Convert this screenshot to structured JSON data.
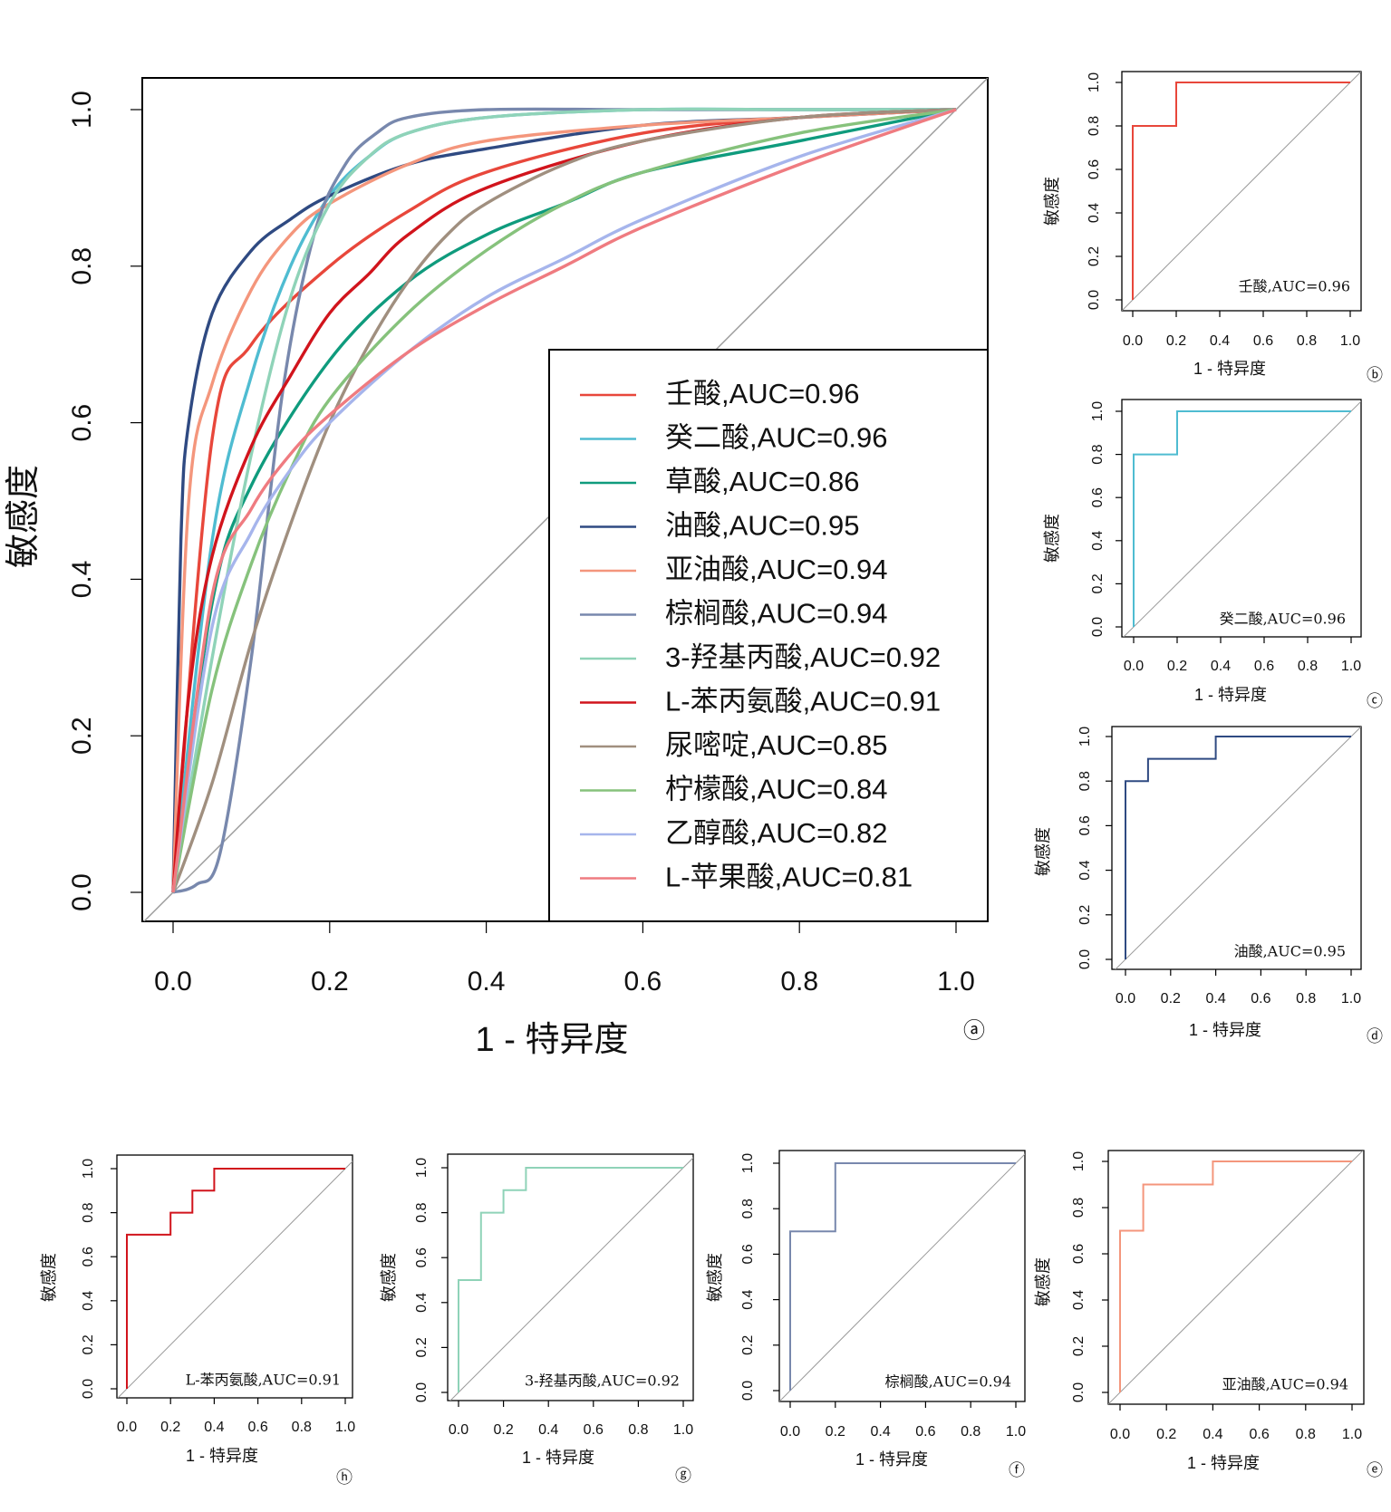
{
  "chart_data": [
    {
      "type": "line",
      "panel_tag": "ⓐ",
      "title": "",
      "xlabel": "1 - 特异度",
      "ylabel": "敏感度",
      "xlim": [
        0,
        1
      ],
      "ylim": [
        0,
        1
      ],
      "x_ticks": [
        "0.0",
        "0.2",
        "0.4",
        "0.6",
        "0.8",
        "1.0"
      ],
      "y_ticks": [
        "0.0",
        "0.2",
        "0.4",
        "0.6",
        "0.8",
        "1.0"
      ],
      "legend_position": "bottom-right",
      "reference_line": "diagonal",
      "series": [
        {
          "name": "壬酸,AUC=0.96",
          "color": "#e8473b",
          "x": [
            0,
            0.05,
            0.1,
            0.2,
            0.3,
            0.4,
            0.6,
            0.8,
            1
          ],
          "y": [
            0,
            0.58,
            0.7,
            0.8,
            0.87,
            0.92,
            0.97,
            0.99,
            1
          ]
        },
        {
          "name": "癸二酸,AUC=0.96",
          "color": "#4fbcd1",
          "x": [
            0,
            0.05,
            0.1,
            0.15,
            0.2,
            0.25,
            0.3,
            0.4,
            0.6,
            0.8,
            1
          ],
          "y": [
            0,
            0.45,
            0.66,
            0.8,
            0.89,
            0.94,
            0.97,
            0.99,
            1,
            1,
            1
          ]
        },
        {
          "name": "草酸,AUC=0.86",
          "color": "#0f9b7d",
          "x": [
            0,
            0.05,
            0.1,
            0.2,
            0.3,
            0.4,
            0.5,
            0.6,
            0.8,
            1
          ],
          "y": [
            0,
            0.37,
            0.52,
            0.68,
            0.78,
            0.84,
            0.88,
            0.92,
            0.96,
            1
          ]
        },
        {
          "name": "油酸,AUC=0.95",
          "color": "#2f4a82",
          "x": [
            0,
            0.01,
            0.02,
            0.05,
            0.1,
            0.15,
            0.2,
            0.3,
            0.4,
            0.6,
            0.8,
            1
          ],
          "y": [
            0,
            0.45,
            0.6,
            0.74,
            0.82,
            0.86,
            0.89,
            0.93,
            0.95,
            0.98,
            0.99,
            1
          ]
        },
        {
          "name": "亚油酸,AUC=0.94",
          "color": "#f4967c",
          "x": [
            0,
            0.02,
            0.05,
            0.1,
            0.15,
            0.2,
            0.3,
            0.4,
            0.6,
            0.8,
            1
          ],
          "y": [
            0,
            0.5,
            0.65,
            0.77,
            0.84,
            0.88,
            0.93,
            0.96,
            0.98,
            0.99,
            1
          ]
        },
        {
          "name": "棕榈酸,AUC=0.94",
          "color": "#7888ad",
          "x": [
            0,
            0.03,
            0.06,
            0.1,
            0.14,
            0.18,
            0.22,
            0.26,
            0.3,
            0.4,
            0.6,
            0.8,
            1
          ],
          "y": [
            0,
            0.01,
            0.05,
            0.3,
            0.64,
            0.84,
            0.93,
            0.97,
            0.99,
            1,
            1,
            1,
            1
          ]
        },
        {
          "name": "3-羟基丙酸,AUC=0.92",
          "color": "#8fd3b8",
          "x": [
            0,
            0.05,
            0.1,
            0.15,
            0.2,
            0.25,
            0.3,
            0.4,
            0.6,
            0.8,
            1
          ],
          "y": [
            0,
            0.3,
            0.56,
            0.76,
            0.88,
            0.94,
            0.97,
            0.99,
            1,
            1,
            1
          ]
        },
        {
          "name": "L-苯丙氨酸,AUC=0.91",
          "color": "#d1141c",
          "x": [
            0,
            0.02,
            0.05,
            0.1,
            0.15,
            0.2,
            0.25,
            0.3,
            0.4,
            0.6,
            0.8,
            1
          ],
          "y": [
            0,
            0.25,
            0.43,
            0.57,
            0.66,
            0.74,
            0.79,
            0.84,
            0.9,
            0.96,
            0.99,
            1
          ]
        },
        {
          "name": "尿嘧啶,AUC=0.85",
          "color": "#a08f7f",
          "x": [
            0,
            0.05,
            0.1,
            0.15,
            0.2,
            0.25,
            0.3,
            0.35,
            0.4,
            0.5,
            0.6,
            0.8,
            1
          ],
          "y": [
            0,
            0.14,
            0.32,
            0.47,
            0.6,
            0.7,
            0.78,
            0.84,
            0.88,
            0.93,
            0.96,
            0.99,
            1
          ]
        },
        {
          "name": "柠檬酸,AUC=0.84",
          "color": "#86c27c",
          "x": [
            0,
            0.05,
            0.1,
            0.15,
            0.2,
            0.3,
            0.4,
            0.5,
            0.6,
            0.8,
            1
          ],
          "y": [
            0,
            0.26,
            0.42,
            0.54,
            0.63,
            0.74,
            0.82,
            0.88,
            0.92,
            0.97,
            1
          ]
        },
        {
          "name": "乙醇酸,AUC=0.82",
          "color": "#a6b5ec",
          "x": [
            0,
            0.05,
            0.1,
            0.15,
            0.2,
            0.3,
            0.4,
            0.5,
            0.6,
            0.8,
            1
          ],
          "y": [
            0,
            0.34,
            0.46,
            0.54,
            0.6,
            0.69,
            0.76,
            0.81,
            0.86,
            0.94,
            1
          ]
        },
        {
          "name": "L-苹果酸,AUC=0.81",
          "color": "#ef7b80",
          "x": [
            0,
            0.05,
            0.1,
            0.15,
            0.2,
            0.3,
            0.4,
            0.5,
            0.6,
            0.8,
            1
          ],
          "y": [
            0,
            0.38,
            0.49,
            0.56,
            0.61,
            0.69,
            0.75,
            0.8,
            0.85,
            0.93,
            1
          ]
        }
      ]
    },
    {
      "type": "line",
      "panel_tag": "ⓑ",
      "xlabel": "1 - 特异度",
      "ylabel": "敏感度",
      "xlim": [
        0,
        1
      ],
      "ylim": [
        0,
        1
      ],
      "x_ticks": [
        "0.0",
        "0.2",
        "0.4",
        "0.6",
        "0.8",
        "1.0"
      ],
      "y_ticks": [
        "0.0",
        "0.2",
        "0.4",
        "0.6",
        "0.8",
        "1.0"
      ],
      "annotation": "壬酸,AUC=0.96",
      "color": "#e8473b",
      "x": [
        0,
        0,
        0.2,
        0.2,
        1
      ],
      "y": [
        0,
        0.8,
        0.8,
        1,
        1
      ]
    },
    {
      "type": "line",
      "panel_tag": "ⓒ",
      "xlabel": "1 - 特异度",
      "ylabel": "敏感度",
      "xlim": [
        0,
        1
      ],
      "ylim": [
        0,
        1
      ],
      "x_ticks": [
        "0.0",
        "0.2",
        "0.4",
        "0.6",
        "0.8",
        "1.0"
      ],
      "y_ticks": [
        "0.0",
        "0.2",
        "0.4",
        "0.6",
        "0.8",
        "1.0"
      ],
      "annotation": "癸二酸,AUC=0.96",
      "color": "#4fbcd1",
      "x": [
        0,
        0,
        0.2,
        0.2,
        1
      ],
      "y": [
        0,
        0.8,
        0.8,
        1,
        1
      ]
    },
    {
      "type": "line",
      "panel_tag": "ⓓ",
      "xlabel": "1 - 特异度",
      "ylabel": "敏感度",
      "xlim": [
        0,
        1
      ],
      "ylim": [
        0,
        1
      ],
      "x_ticks": [
        "0.0",
        "0.2",
        "0.4",
        "0.6",
        "0.8",
        "1.0"
      ],
      "y_ticks": [
        "0.0",
        "0.2",
        "0.4",
        "0.6",
        "0.8",
        "1.0"
      ],
      "annotation": "油酸,AUC=0.95",
      "color": "#2f4a82",
      "x": [
        0,
        0,
        0.1,
        0.1,
        0.4,
        0.4,
        1
      ],
      "y": [
        0,
        0.8,
        0.8,
        0.9,
        0.9,
        1,
        1
      ]
    },
    {
      "type": "line",
      "panel_tag": "ⓔ",
      "xlabel": "1 - 特异度",
      "ylabel": "敏感度",
      "xlim": [
        0,
        1
      ],
      "ylim": [
        0,
        1
      ],
      "x_ticks": [
        "0.0",
        "0.2",
        "0.4",
        "0.6",
        "0.8",
        "1.0"
      ],
      "y_ticks": [
        "0.0",
        "0.2",
        "0.4",
        "0.6",
        "0.8",
        "1.0"
      ],
      "annotation": "亚油酸,AUC=0.94",
      "color": "#f4967c",
      "x": [
        0,
        0,
        0.1,
        0.1,
        0.4,
        0.4,
        1
      ],
      "y": [
        0,
        0.7,
        0.7,
        0.9,
        0.9,
        1,
        1
      ]
    },
    {
      "type": "line",
      "panel_tag": "ⓕ",
      "xlabel": "1 - 特异度",
      "ylabel": "敏感度",
      "xlim": [
        0,
        1
      ],
      "ylim": [
        0,
        1
      ],
      "x_ticks": [
        "0.0",
        "0.2",
        "0.4",
        "0.6",
        "0.8",
        "1.0"
      ],
      "y_ticks": [
        "0.0",
        "0.2",
        "0.4",
        "0.6",
        "0.8",
        "1.0"
      ],
      "annotation": "棕榈酸,AUC=0.94",
      "color": "#7888ad",
      "x": [
        0,
        0,
        0.2,
        0.2,
        1
      ],
      "y": [
        0,
        0.7,
        0.7,
        1,
        1
      ]
    },
    {
      "type": "line",
      "panel_tag": "ⓖ",
      "xlabel": "1 - 特异度",
      "ylabel": "敏感度",
      "xlim": [
        0,
        1
      ],
      "ylim": [
        0,
        1
      ],
      "x_ticks": [
        "0.0",
        "0.2",
        "0.4",
        "0.6",
        "0.8",
        "1.0"
      ],
      "y_ticks": [
        "0.0",
        "0.2",
        "0.4",
        "0.6",
        "0.8",
        "1.0"
      ],
      "annotation": "3-羟基丙酸,AUC=0.92",
      "color": "#8fd3b8",
      "x": [
        0,
        0,
        0.1,
        0.1,
        0.2,
        0.2,
        0.3,
        0.3,
        1
      ],
      "y": [
        0,
        0.5,
        0.5,
        0.8,
        0.8,
        0.9,
        0.9,
        1,
        1
      ]
    },
    {
      "type": "line",
      "panel_tag": "ⓗ",
      "xlabel": "1 - 特异度",
      "ylabel": "敏感度",
      "xlim": [
        0,
        1
      ],
      "ylim": [
        0,
        1
      ],
      "x_ticks": [
        "0.0",
        "0.2",
        "0.4",
        "0.6",
        "0.8",
        "1.0"
      ],
      "y_ticks": [
        "0.0",
        "0.2",
        "0.4",
        "0.6",
        "0.8",
        "1.0"
      ],
      "annotation": "L-苯丙氨酸,AUC=0.91",
      "color": "#d1141c",
      "x": [
        0,
        0,
        0.2,
        0.2,
        0.3,
        0.3,
        0.4,
        0.4,
        1
      ],
      "y": [
        0,
        0.7,
        0.7,
        0.8,
        0.8,
        0.9,
        0.9,
        1,
        1
      ]
    }
  ]
}
